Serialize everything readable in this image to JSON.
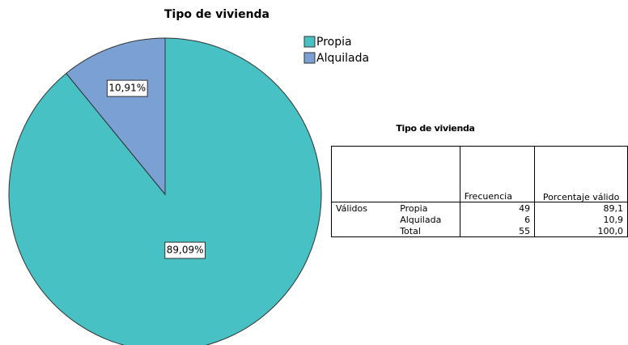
{
  "chart_data": {
    "type": "pie",
    "title": "Tipo de vivienda",
    "categories": [
      "Propia",
      "Alquilada"
    ],
    "values": [
      89.09,
      10.91
    ],
    "value_labels": [
      "89,09%",
      "10,91%"
    ],
    "colors": [
      "#48c1c4",
      "#7ba0d4"
    ],
    "legend": "top-right"
  },
  "table": {
    "title": "Tipo de vivienda",
    "header": [
      "Frecuencia",
      "Porcentaje válido"
    ],
    "group": "Válidos",
    "rows": [
      {
        "label": "Propia",
        "frequency": 49,
        "percent": "89,1"
      },
      {
        "label": "Alquilada",
        "frequency": 6,
        "percent": "10,9"
      },
      {
        "label": "Total",
        "frequency": 55,
        "percent": "100,0"
      }
    ]
  }
}
